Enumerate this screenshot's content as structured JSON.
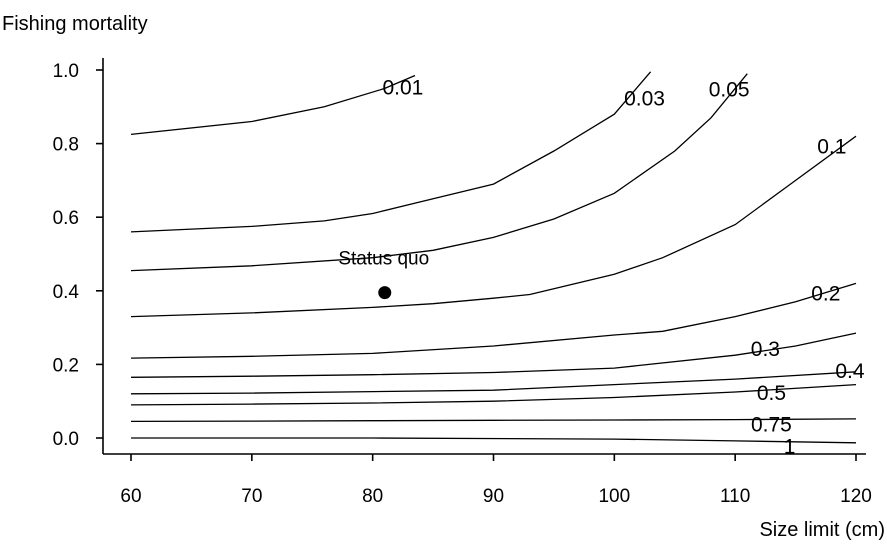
{
  "chart_data": {
    "type": "line",
    "ylabel": "Fishing mortality",
    "xlabel": "Size limit (cm)",
    "xlim": [
      60,
      120
    ],
    "ylim": [
      0.0,
      1.0
    ],
    "xticks": [
      "60",
      "70",
      "80",
      "90",
      "100",
      "110",
      "120"
    ],
    "yticks": [
      "0.0",
      "0.2",
      "0.4",
      "0.6",
      "0.8",
      "1.0"
    ],
    "grid": false,
    "series": [
      {
        "name": "0.01",
        "x": [
          60,
          70,
          76,
          81,
          83.5
        ],
        "y": [
          0.825,
          0.86,
          0.9,
          0.95,
          0.985
        ]
      },
      {
        "name": "0.03",
        "x": [
          60,
          70,
          76,
          80,
          85,
          90,
          95,
          100,
          103
        ],
        "y": [
          0.56,
          0.575,
          0.59,
          0.61,
          0.65,
          0.69,
          0.78,
          0.88,
          0.995
        ]
      },
      {
        "name": "0.05",
        "x": [
          60,
          70,
          80,
          85,
          90,
          95,
          100,
          105,
          108,
          111
        ],
        "y": [
          0.455,
          0.468,
          0.49,
          0.51,
          0.545,
          0.595,
          0.665,
          0.78,
          0.87,
          0.99
        ]
      },
      {
        "name": "0.1",
        "x": [
          60,
          70,
          80,
          85,
          90,
          93,
          100,
          104,
          110,
          115,
          120
        ],
        "y": [
          0.33,
          0.34,
          0.355,
          0.365,
          0.38,
          0.39,
          0.445,
          0.49,
          0.58,
          0.7,
          0.82
        ]
      },
      {
        "name": "0.2",
        "x": [
          60,
          70,
          80,
          90,
          100,
          104,
          110,
          115,
          120
        ],
        "y": [
          0.217,
          0.222,
          0.23,
          0.25,
          0.28,
          0.29,
          0.33,
          0.37,
          0.42
        ]
      },
      {
        "name": "0.3",
        "x": [
          60,
          70,
          80,
          90,
          100,
          110,
          115,
          120
        ],
        "y": [
          0.165,
          0.168,
          0.172,
          0.178,
          0.19,
          0.225,
          0.25,
          0.285
        ]
      },
      {
        "name": "0.4",
        "x": [
          60,
          70,
          80,
          90,
          100,
          110,
          120
        ],
        "y": [
          0.12,
          0.122,
          0.126,
          0.13,
          0.145,
          0.16,
          0.18
        ]
      },
      {
        "name": "0.5",
        "x": [
          60,
          70,
          80,
          90,
          100,
          110,
          120
        ],
        "y": [
          0.09,
          0.092,
          0.095,
          0.1,
          0.11,
          0.125,
          0.145
        ]
      },
      {
        "name": "0.75",
        "x": [
          60,
          70,
          80,
          90,
          100,
          110,
          120
        ],
        "y": [
          0.045,
          0.046,
          0.047,
          0.048,
          0.049,
          0.05,
          0.052
        ]
      },
      {
        "name": "1",
        "x": [
          60,
          80,
          100,
          110,
          120
        ],
        "y": [
          0.0,
          0.0,
          -0.003,
          -0.008,
          -0.013
        ]
      }
    ],
    "contour_labels": [
      {
        "text": "0.01",
        "x": 82.5,
        "y": 0.955
      },
      {
        "text": "0.03",
        "x": 102.5,
        "y": 0.925
      },
      {
        "text": "0.05",
        "x": 109.5,
        "y": 0.95
      },
      {
        "text": "0.1",
        "x": 118,
        "y": 0.795
      },
      {
        "text": "0.2",
        "x": 117.5,
        "y": 0.395
      },
      {
        "text": "0.3",
        "x": 112.5,
        "y": 0.245
      },
      {
        "text": "0.4",
        "x": 119.5,
        "y": 0.185
      },
      {
        "text": "0.5",
        "x": 113,
        "y": 0.125
      },
      {
        "text": "0.75",
        "x": 113,
        "y": 0.04
      },
      {
        "text": "1",
        "x": 114.5,
        "y": -0.02
      }
    ],
    "points": [
      {
        "label": "Status quo",
        "x": 81,
        "y": 0.395
      }
    ]
  }
}
